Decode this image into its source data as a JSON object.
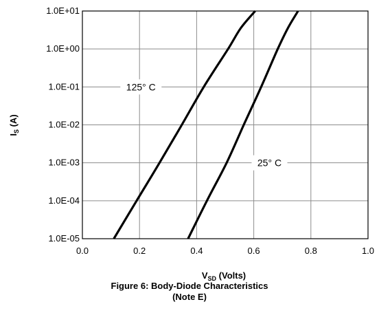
{
  "chart_data": {
    "type": "line",
    "title": "Figure 6: Body-Diode Characteristics",
    "subtitle": "(Note E)",
    "xlabel_main": "V",
    "xlabel_sub": "SD",
    "xlabel_rest": " (Volts)",
    "ylabel_main": "I",
    "ylabel_sub": "S",
    "ylabel_rest": " (A)",
    "x_scale": "linear",
    "y_scale": "log",
    "xlim": [
      0.0,
      1.0
    ],
    "ylim": [
      1e-05,
      10
    ],
    "x_ticks": [
      0.0,
      0.2,
      0.4,
      0.6,
      0.8,
      1.0
    ],
    "x_tick_labels": [
      "0.0",
      "0.2",
      "0.4",
      "0.6",
      "0.8",
      "1.0"
    ],
    "y_ticks": [
      1e-05,
      0.0001,
      0.001,
      0.01,
      0.1,
      1,
      10
    ],
    "y_tick_labels": [
      "1.0E-05",
      "1.0E-04",
      "1.0E-03",
      "1.0E-02",
      "1.0E-01",
      "1.0E+00",
      "1.0E+01"
    ],
    "grid": true,
    "series": [
      {
        "name": "125° C",
        "color": "#000000",
        "points": [
          {
            "x": 0.11,
            "y": 1e-05
          },
          {
            "x": 0.19,
            "y": 0.0001
          },
          {
            "x": 0.27,
            "y": 0.001
          },
          {
            "x": 0.348,
            "y": 0.01
          },
          {
            "x": 0.425,
            "y": 0.1
          },
          {
            "x": 0.51,
            "y": 1.0
          },
          {
            "x": 0.555,
            "y": 3.6
          },
          {
            "x": 0.605,
            "y": 10
          }
        ]
      },
      {
        "name": "25° C",
        "color": "#000000",
        "points": [
          {
            "x": 0.37,
            "y": 1e-05
          },
          {
            "x": 0.436,
            "y": 0.0001
          },
          {
            "x": 0.505,
            "y": 0.001
          },
          {
            "x": 0.565,
            "y": 0.01
          },
          {
            "x": 0.626,
            "y": 0.1
          },
          {
            "x": 0.684,
            "y": 1.0
          },
          {
            "x": 0.72,
            "y": 3.6
          },
          {
            "x": 0.755,
            "y": 10
          }
        ]
      }
    ],
    "annotations": [
      {
        "text": "125° C",
        "x": 0.205,
        "y": 0.1
      },
      {
        "text": "25° C",
        "x": 0.655,
        "y": 0.001
      }
    ]
  }
}
